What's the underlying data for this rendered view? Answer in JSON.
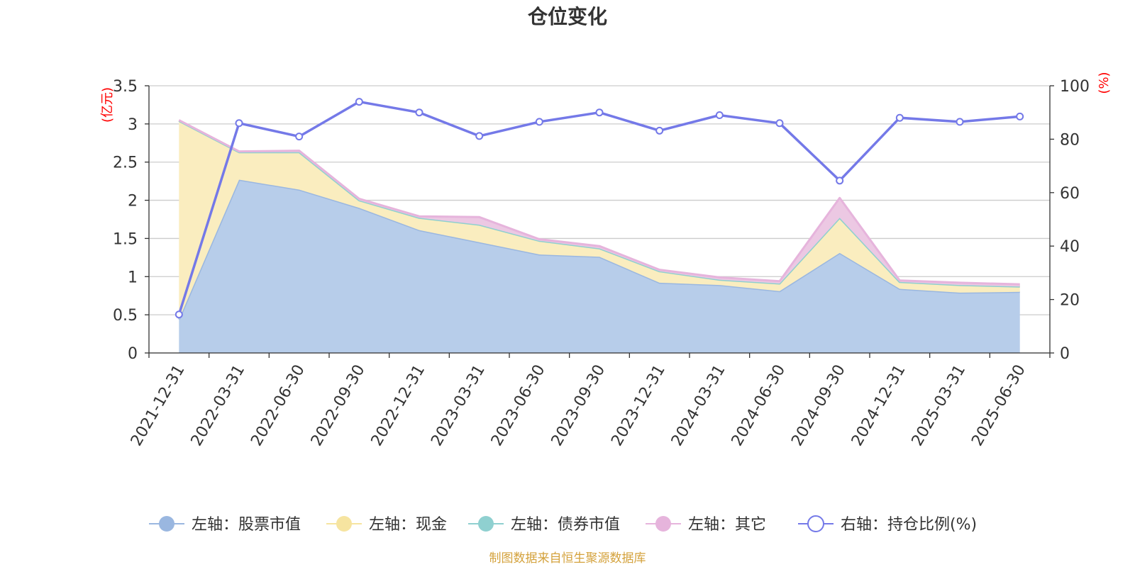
{
  "chart_data": {
    "type": "area",
    "title": "仓位变化",
    "left_unit": "(亿元)",
    "right_unit": "(%)",
    "source": "制图数据来自恒生聚源数据库",
    "categories": [
      "2021-12-31",
      "2022-03-31",
      "2022-06-30",
      "2022-09-30",
      "2022-12-31",
      "2023-03-31",
      "2023-06-30",
      "2023-09-30",
      "2023-12-31",
      "2024-03-31",
      "2024-06-30",
      "2024-09-30",
      "2024-12-31",
      "2025-03-31",
      "2025-06-30"
    ],
    "left_axis": {
      "min": 0,
      "max": 3.5,
      "ticks": [
        "0",
        "0.5",
        "1",
        "1.5",
        "2",
        "2.5",
        "3",
        "3.5"
      ]
    },
    "right_axis": {
      "min": 0,
      "max": 100,
      "ticks": [
        "0",
        "20",
        "40",
        "60",
        "80",
        "100"
      ]
    },
    "series": [
      {
        "name": "左轴：股票市值",
        "axis": "left",
        "color": "#9ab7e0",
        "fill": "#b7cdea",
        "values": [
          0.44,
          2.27,
          2.14,
          1.9,
          1.61,
          1.45,
          1.29,
          1.26,
          0.92,
          0.89,
          0.81,
          1.31,
          0.84,
          0.79,
          0.8
        ]
      },
      {
        "name": "左轴：现金",
        "axis": "left",
        "color": "#f6e4a0",
        "fill": "#faedbf",
        "values": [
          2.6,
          0.36,
          0.49,
          0.1,
          0.16,
          0.23,
          0.18,
          0.11,
          0.15,
          0.07,
          0.1,
          0.46,
          0.09,
          0.1,
          0.07
        ]
      },
      {
        "name": "左轴：债券市值",
        "axis": "left",
        "color": "#8fd0d0",
        "fill": "#b8e2e2",
        "values": [
          0,
          0,
          0,
          0,
          0,
          0,
          0,
          0,
          0,
          0,
          0,
          0,
          0,
          0,
          0
        ]
      },
      {
        "name": "左轴：其它",
        "axis": "left",
        "color": "#e6b4dc",
        "fill": "#ecc8e3",
        "values": [
          0.01,
          0.01,
          0.02,
          0.02,
          0.02,
          0.1,
          0.02,
          0.03,
          0.02,
          0.03,
          0.03,
          0.26,
          0.02,
          0.03,
          0.03
        ]
      },
      {
        "name": "右轴：持仓比例(%)",
        "axis": "right",
        "color": "#7479e8",
        "fill": "none",
        "values": [
          14.4,
          86.0,
          81.0,
          94.0,
          90.0,
          81.2,
          86.5,
          90.0,
          83.2,
          89.0,
          86.0,
          64.5,
          88.0,
          86.5,
          88.5
        ]
      }
    ],
    "legend_position": "bottom",
    "grid": true
  }
}
